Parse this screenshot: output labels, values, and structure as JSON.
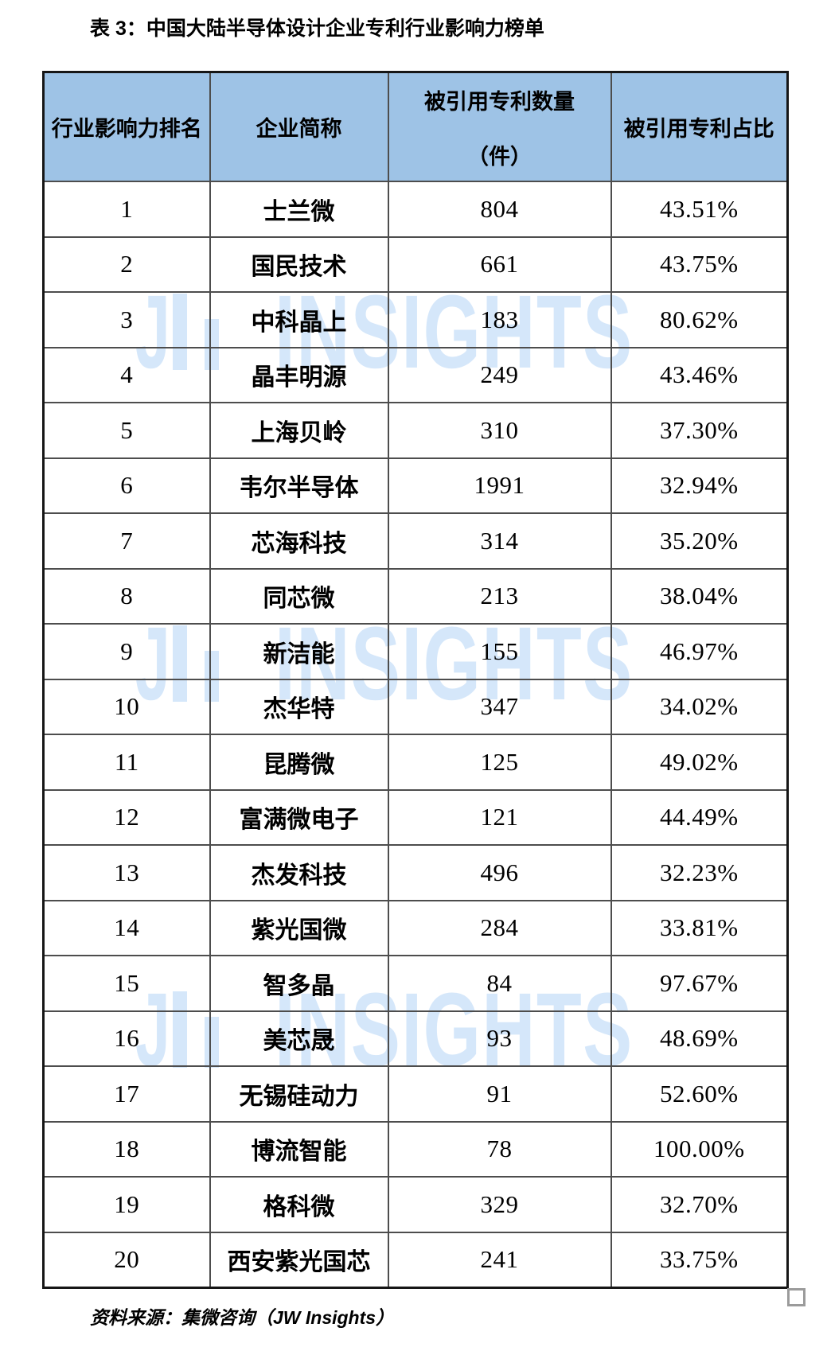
{
  "page": {
    "title": "表 3：中国大陆半导体设计企业专利行业影响力榜单"
  },
  "table": {
    "columns": {
      "rank": "行业影响力排名",
      "company": "企业简称",
      "cited_line1": "被引用专利数量",
      "cited_line2": "（件）",
      "share": "被引用专利占比"
    },
    "rows": [
      {
        "rank": "1",
        "company": "士兰微",
        "cited": "804",
        "share": "43.51%"
      },
      {
        "rank": "2",
        "company": "国民技术",
        "cited": "661",
        "share": "43.75%"
      },
      {
        "rank": "3",
        "company": "中科晶上",
        "cited": "183",
        "share": "80.62%"
      },
      {
        "rank": "4",
        "company": "晶丰明源",
        "cited": "249",
        "share": "43.46%"
      },
      {
        "rank": "5",
        "company": "上海贝岭",
        "cited": "310",
        "share": "37.30%"
      },
      {
        "rank": "6",
        "company": "韦尔半导体",
        "cited": "1991",
        "share": "32.94%"
      },
      {
        "rank": "7",
        "company": "芯海科技",
        "cited": "314",
        "share": "35.20%"
      },
      {
        "rank": "8",
        "company": "同芯微",
        "cited": "213",
        "share": "38.04%"
      },
      {
        "rank": "9",
        "company": "新洁能",
        "cited": "155",
        "share": "46.97%"
      },
      {
        "rank": "10",
        "company": "杰华特",
        "cited": "347",
        "share": "34.02%"
      },
      {
        "rank": "11",
        "company": "昆腾微",
        "cited": "125",
        "share": "49.02%"
      },
      {
        "rank": "12",
        "company": "富满微电子",
        "cited": "121",
        "share": "44.49%"
      },
      {
        "rank": "13",
        "company": "杰发科技",
        "cited": "496",
        "share": "32.23%"
      },
      {
        "rank": "14",
        "company": "紫光国微",
        "cited": "284",
        "share": "33.81%"
      },
      {
        "rank": "15",
        "company": "智多晶",
        "cited": "84",
        "share": "97.67%"
      },
      {
        "rank": "16",
        "company": "美芯晟",
        "cited": "93",
        "share": "48.69%"
      },
      {
        "rank": "17",
        "company": "无锡硅动力",
        "cited": "91",
        "share": "52.60%"
      },
      {
        "rank": "18",
        "company": "博流智能",
        "cited": "78",
        "share": "100.00%"
      },
      {
        "rank": "19",
        "company": "格科微",
        "cited": "329",
        "share": "32.70%"
      },
      {
        "rank": "20",
        "company": "西安紫光国芯",
        "cited": "241",
        "share": "33.75%"
      }
    ]
  },
  "watermark": {
    "brand": "JW INSIGHTS",
    "logo_letter": "J",
    "name": "INSIGHTS"
  },
  "footer": {
    "source": "资料来源：集微咨询（JW Insights）"
  },
  "colors": {
    "header_bg": "#9EC3E6",
    "watermark": "#D5E7FA",
    "border_outer": "#161616",
    "border_inner": "#4d4d4d",
    "text": "#000000"
  }
}
